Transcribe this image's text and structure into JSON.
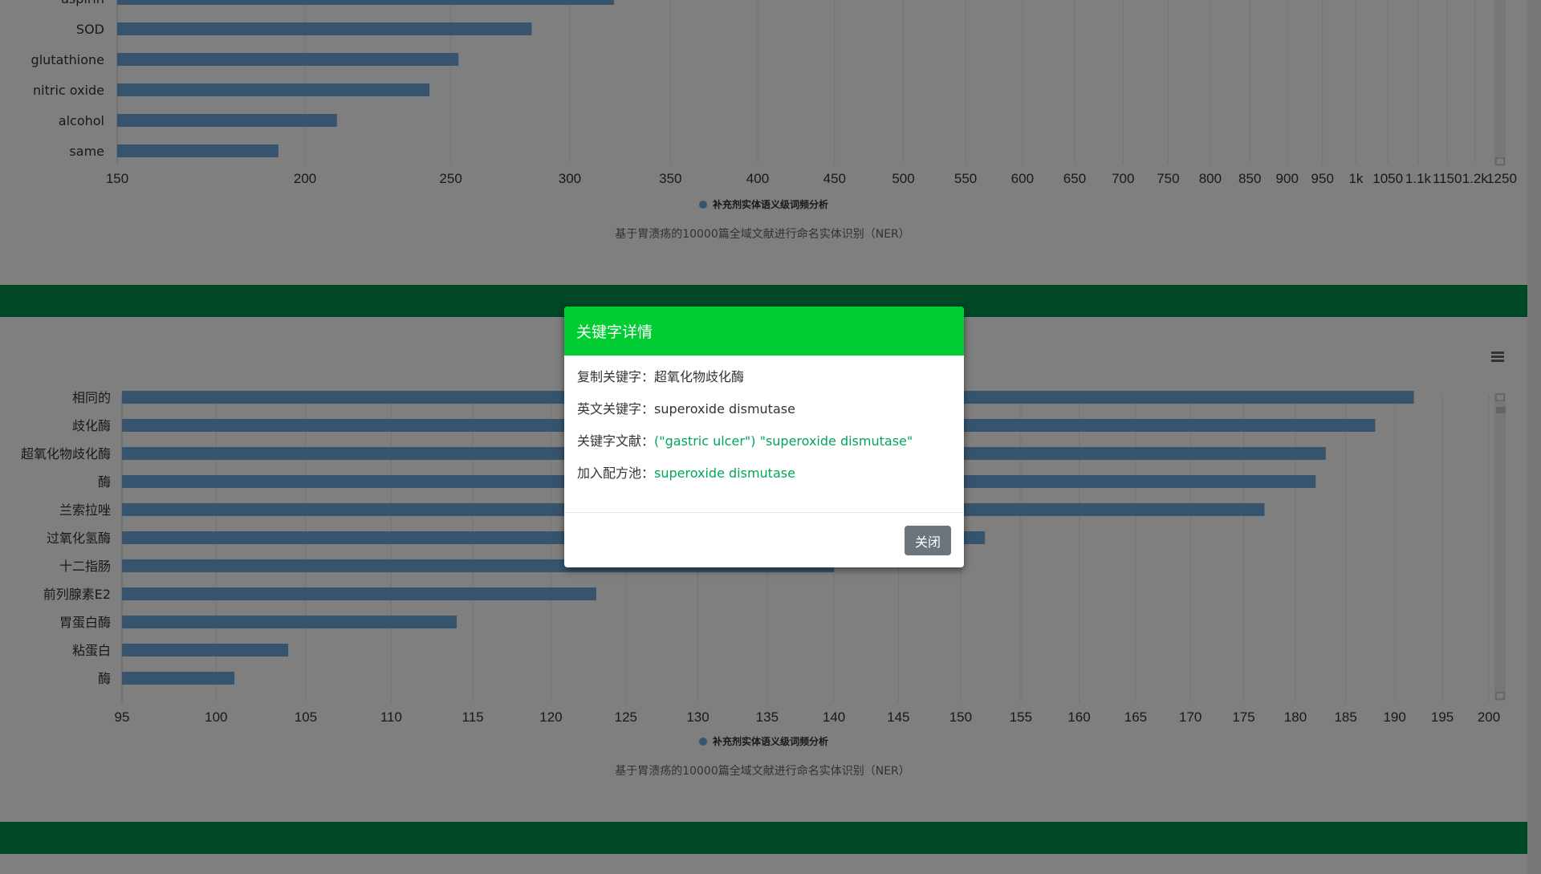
{
  "chart_data": [
    {
      "type": "bar",
      "orientation": "horizontal",
      "categories": [
        "aspirin",
        "SOD",
        "glutathione",
        "nitric oxide",
        "alcohol",
        "same"
      ],
      "values": [
        321,
        283,
        253,
        242,
        210,
        192
      ],
      "x_ticks": [
        "150",
        "200",
        "250",
        "300",
        "350",
        "400",
        "450",
        "500",
        "550",
        "600",
        "650",
        "700",
        "750",
        "800",
        "850",
        "900",
        "950",
        "1k",
        "1050",
        "1.1k",
        "1150",
        "1.2k",
        "1250"
      ],
      "x_tick_values": [
        150,
        200,
        250,
        300,
        350,
        400,
        450,
        500,
        550,
        600,
        650,
        700,
        750,
        800,
        850,
        900,
        950,
        1000,
        1050,
        1100,
        1150,
        1200,
        1250
      ],
      "x_scale": "log",
      "legend": "补充剂实体语义级词频分析",
      "subtitle": "基于胃溃疡的10000篇全域文献进行命名实体识别（NER）",
      "bar_color": "#6fa8dc"
    },
    {
      "type": "bar",
      "orientation": "horizontal",
      "categories": [
        "相同的",
        "歧化酶",
        "超氧化物歧化酶",
        "酶",
        "兰索拉唑",
        "过氧化氢酶",
        "十二指肠",
        "前列腺素E2",
        "胃蛋白酶",
        "粘蛋白",
        "酶"
      ],
      "values": [
        192,
        188,
        183,
        182,
        177,
        152,
        140,
        123,
        114,
        104,
        101
      ],
      "x_ticks": [
        "95",
        "100",
        "105",
        "110",
        "115",
        "120",
        "125",
        "130",
        "135",
        "140",
        "145",
        "150",
        "155",
        "160",
        "165",
        "170",
        "175",
        "180",
        "185",
        "190",
        "195",
        "200"
      ],
      "x_tick_values": [
        95,
        100,
        105,
        110,
        115,
        120,
        125,
        130,
        135,
        140,
        145,
        150,
        155,
        160,
        165,
        170,
        175,
        180,
        185,
        190,
        195,
        200
      ],
      "x_scale": "log",
      "legend": "补充剂实体语义级词频分析",
      "subtitle": "基于胃溃疡的10000篇全域文献进行命名实体识别（NER）",
      "bar_color": "#6fa8dc"
    }
  ],
  "colors": {
    "band": "#00914c",
    "modal_header": "#00cd32",
    "link": "#00a65a",
    "close_button": "#6c757d"
  },
  "modal": {
    "title": "关键字详情",
    "rows": [
      {
        "label": "复制关键字：",
        "value": "超氧化物歧化酶",
        "link": false
      },
      {
        "label": "英文关键字：",
        "value": "superoxide dismutase",
        "link": false
      },
      {
        "label": "关键字文献：",
        "value": "(\"gastric ulcer\") \"superoxide dismutase\"",
        "link": true
      },
      {
        "label": "加入配方池：",
        "value": "superoxide dismutase",
        "link": true
      }
    ],
    "close_label": "关闭"
  },
  "icons": {
    "toolbox": "menu-icon"
  }
}
